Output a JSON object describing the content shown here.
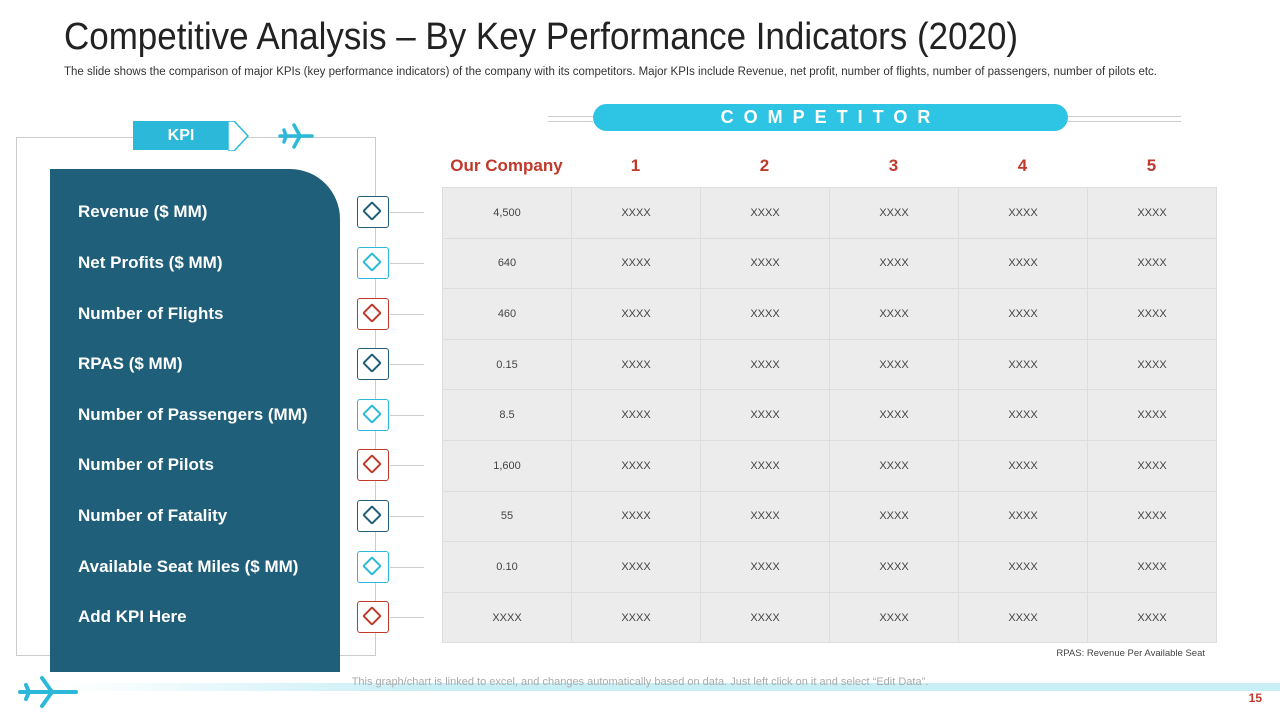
{
  "header": {
    "title": "Competitive Analysis – By Key Performance Indicators (2020)",
    "subtitle": "The slide shows the comparison of major KPIs (key performance  indicators) of the company with its competitors. Major KPIs include Revenue,  net profit, number of flights, number of passengers, number of pilots etc."
  },
  "kpi_tag": "KPI",
  "competitor_banner": "COMPETITOR",
  "table": {
    "columns": [
      "Our Company",
      "1",
      "2",
      "3",
      "4",
      "5"
    ],
    "rows": [
      {
        "kpi": "Revenue ($ MM)",
        "cells": [
          "4,500",
          "XXXX",
          "XXXX",
          "XXXX",
          "XXXX",
          "XXXX"
        ]
      },
      {
        "kpi": "Net Profits ($ MM)",
        "cells": [
          "640",
          "XXXX",
          "XXXX",
          "XXXX",
          "XXXX",
          "XXXX"
        ]
      },
      {
        "kpi": "Number of Flights",
        "cells": [
          "460",
          "XXXX",
          "XXXX",
          "XXXX",
          "XXXX",
          "XXXX"
        ]
      },
      {
        "kpi": "RPAS ($ MM)",
        "cells": [
          "0.15",
          "XXXX",
          "XXXX",
          "XXXX",
          "XXXX",
          "XXXX"
        ]
      },
      {
        "kpi": "Number of Passengers (MM)",
        "cells": [
          "8.5",
          "XXXX",
          "XXXX",
          "XXXX",
          "XXXX",
          "XXXX"
        ]
      },
      {
        "kpi": "Number of Pilots",
        "cells": [
          "1,600",
          "XXXX",
          "XXXX",
          "XXXX",
          "XXXX",
          "XXXX"
        ]
      },
      {
        "kpi": "Number of Fatality",
        "cells": [
          "55",
          "XXXX",
          "XXXX",
          "XXXX",
          "XXXX",
          "XXXX"
        ]
      },
      {
        "kpi": "Available Seat Miles ($ MM)",
        "cells": [
          "0.10",
          "XXXX",
          "XXXX",
          "XXXX",
          "XXXX",
          "XXXX"
        ]
      },
      {
        "kpi": "Add KPI Here",
        "cells": [
          "XXXX",
          "XXXX",
          "XXXX",
          "XXXX",
          "XXXX",
          "XXXX"
        ]
      }
    ]
  },
  "footnote": "RPAS: Revenue Per Available Seat",
  "note": "This graph/chart is linked to excel,  and changes automatically based on data. Just left click on it and select “Edit Data”.",
  "page_number": "15"
}
